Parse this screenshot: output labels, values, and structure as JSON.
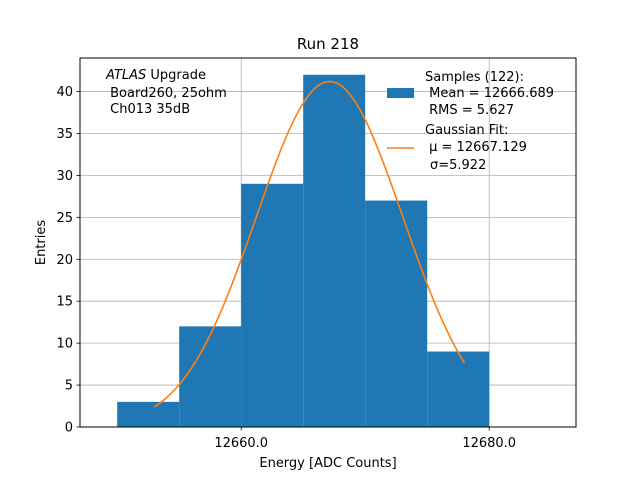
{
  "chart_data": {
    "type": "bar",
    "title": "Run 218",
    "xlabel": "Energy [ADC Counts]",
    "ylabel": "Entries",
    "xlim": [
      12647,
      12687
    ],
    "ylim": [
      0,
      44
    ],
    "x_ticks": [
      12660.0,
      12680.0
    ],
    "x_tick_labels": [
      "12660.0",
      "12680.0"
    ],
    "y_ticks": [
      0,
      5,
      10,
      15,
      20,
      25,
      30,
      35,
      40
    ],
    "grid": true,
    "bin_edges": [
      12650,
      12655,
      12660,
      12665,
      12670,
      12675,
      12680
    ],
    "counts": [
      3,
      12,
      29,
      42,
      27,
      9
    ],
    "bar_color": "#1f77b4",
    "fit": {
      "type": "gaussian",
      "mu": 12667.129,
      "sigma": 5.922,
      "amplitude": 41.2,
      "x_range": [
        12653,
        12678
      ],
      "color": "#ff7f0e"
    },
    "annotation": {
      "line1_italic": "ATLAS",
      "line1_rest": " Upgrade",
      "line2": " Board260, 25ohm",
      "line3": " Ch013 35dB"
    },
    "legend": {
      "placement": "top-right",
      "samples_title": "Samples (122):",
      "samples_mean": " Mean = 12666.689",
      "samples_rms": " RMS = 5.627",
      "fit_title": "Gaussian Fit:",
      "fit_mu": " μ = 12667.129",
      "fit_sigma": "σ=5.922"
    }
  }
}
